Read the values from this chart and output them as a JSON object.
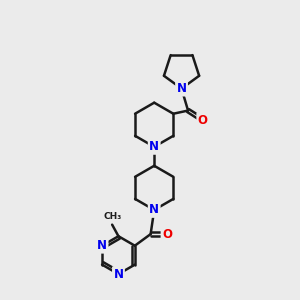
{
  "bg_color": "#ebebeb",
  "bond_color": "#1a1a1a",
  "bond_width": 1.8,
  "N_color": "#0000ee",
  "O_color": "#ee0000",
  "font_size_atom": 8.5,
  "fig_width": 3.0,
  "fig_height": 3.0,
  "xlim": [
    0,
    10
  ],
  "ylim": [
    0,
    14
  ]
}
